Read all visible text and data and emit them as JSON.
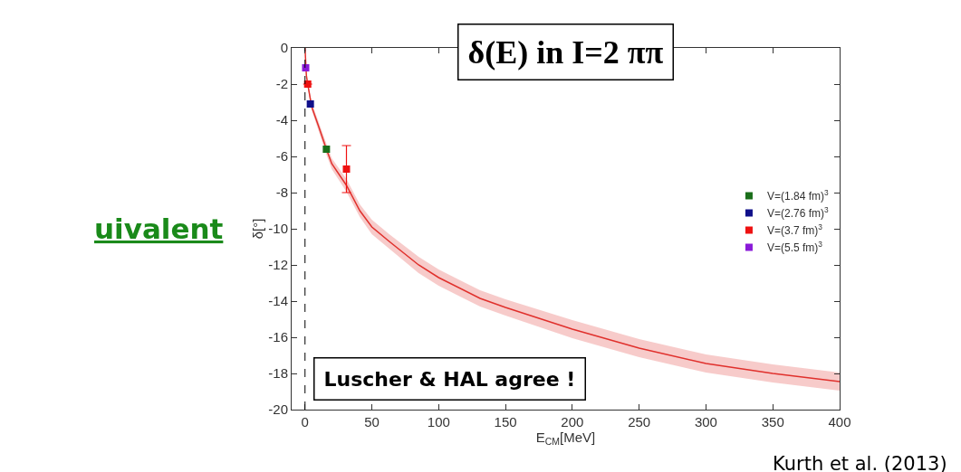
{
  "chart_data": {
    "type": "scatter",
    "xlabel": "E$_{CM}$[MeV]",
    "ylabel": "δ[°]",
    "xlim": [
      -10,
      400
    ],
    "xticks": [
      0,
      50,
      100,
      150,
      200,
      250,
      300,
      350,
      400
    ],
    "ylim": [
      -20,
      0
    ],
    "yticks": [
      0,
      -2,
      -4,
      -6,
      -8,
      -10,
      -12,
      -14,
      -16,
      -18,
      -20
    ],
    "legend": "right",
    "marker": "square",
    "ref_lines": [
      {
        "axis": "x",
        "value": 0,
        "color": "#000000",
        "line_style": "dashed"
      }
    ],
    "series": [
      {
        "type": "line",
        "marker": "none",
        "color": "#e0302c",
        "x": [
          0,
          1,
          2,
          5,
          10,
          16,
          20,
          31,
          41,
          50,
          63,
          85,
          100,
          131,
          150,
          200,
          250,
          300,
          350,
          400
        ],
        "values": [
          0,
          -1.5,
          -2.0,
          -3.25,
          -4.3,
          -5.6,
          -6.4,
          -7.6,
          -9.0,
          -9.9,
          -10.7,
          -12.0,
          -12.7,
          -13.85,
          -14.35,
          -15.55,
          -16.6,
          -17.45,
          -18.0,
          -18.45
        ],
        "lower": [
          0,
          -1.6,
          -2.15,
          -3.45,
          -4.55,
          -5.9,
          -6.7,
          -7.95,
          -9.35,
          -10.3,
          -11.1,
          -12.45,
          -13.15,
          -14.3,
          -14.8,
          -16.05,
          -17.1,
          -17.95,
          -18.5,
          -18.95
        ],
        "upper": [
          0,
          -1.4,
          -1.85,
          -3.05,
          -4.05,
          -5.3,
          -6.1,
          -7.25,
          -8.65,
          -9.5,
          -10.3,
          -11.55,
          -12.25,
          -13.4,
          -13.9,
          -15.05,
          -16.1,
          -16.95,
          -17.5,
          -17.95
        ]
      },
      {
        "name": "V=(1.84 fm)$^{3}$",
        "color": "#1a6e1a",
        "x": [
          16
        ],
        "values": [
          -5.6
        ]
      },
      {
        "name": "V=(2.76 fm)$^{3}$",
        "color": "#10108a",
        "x": [
          4
        ],
        "values": [
          -3.1
        ]
      },
      {
        "name": "V=(3.7 fm)$^{3}$",
        "color": "#ee1111",
        "x": [
          2,
          31
        ],
        "values": [
          -2.0,
          -6.7
        ],
        "errors": [
          null,
          1.3
        ]
      },
      {
        "name": "V=(5.5 fm)$^{3}$",
        "color": "#8a1ad8",
        "x": [
          0.5
        ],
        "values": [
          -1.1
        ]
      }
    ],
    "annotations": [
      "δ(E) in I=2 ππ",
      "uivalent",
      "Luscher & HAL agree !",
      "Kurth et al. (2013)"
    ]
  }
}
